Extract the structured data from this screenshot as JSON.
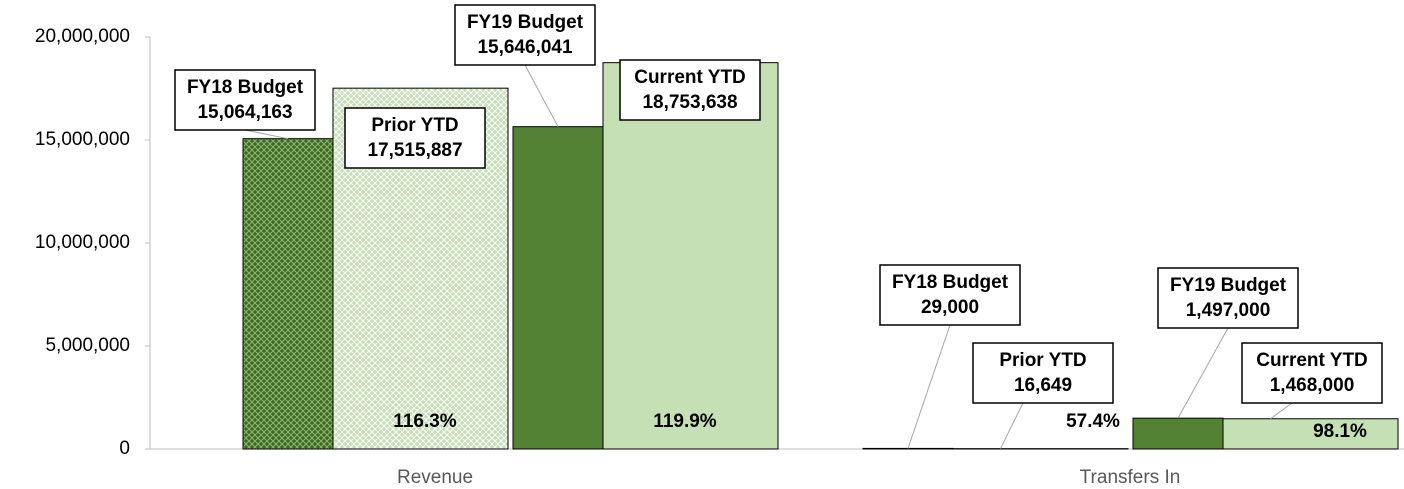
{
  "chart_data": {
    "type": "bar",
    "categories": [
      "Revenue",
      "Transfers In"
    ],
    "series": [
      {
        "name": "FY18 Budget",
        "color": "#3b6b22",
        "hatched": true,
        "values": [
          15064163,
          29000
        ],
        "value_labels": [
          "15,064,163",
          "29,000"
        ]
      },
      {
        "name": "Prior YTD",
        "color": "#a9d18e",
        "hatched": true,
        "values": [
          17515887,
          16649
        ],
        "value_labels": [
          "17,515,887",
          "16,649"
        ]
      },
      {
        "name": "FY19 Budget",
        "color": "#548235",
        "values": [
          15646041,
          1497000
        ],
        "value_labels": [
          "15,646,041",
          "1,497,000"
        ]
      },
      {
        "name": "Current YTD",
        "color": "#c5e0b4",
        "values": [
          18753638,
          1468000
        ],
        "value_labels": [
          "18,753,638",
          "1,468,000"
        ]
      }
    ],
    "percent_labels": [
      [
        "116.3%",
        "119.9%"
      ],
      [
        "57.4%",
        "98.1%"
      ]
    ],
    "ylim": [
      0,
      20000000
    ],
    "yticks": [
      0,
      {
        "value": 5000000,
        "label": "5,000,000"
      },
      {
        "value": 10000000,
        "label": "10,000,000"
      },
      {
        "value": 15000000,
        "label": "15,000,000"
      },
      {
        "value": 20000000,
        "label": "20,000,000"
      }
    ]
  }
}
